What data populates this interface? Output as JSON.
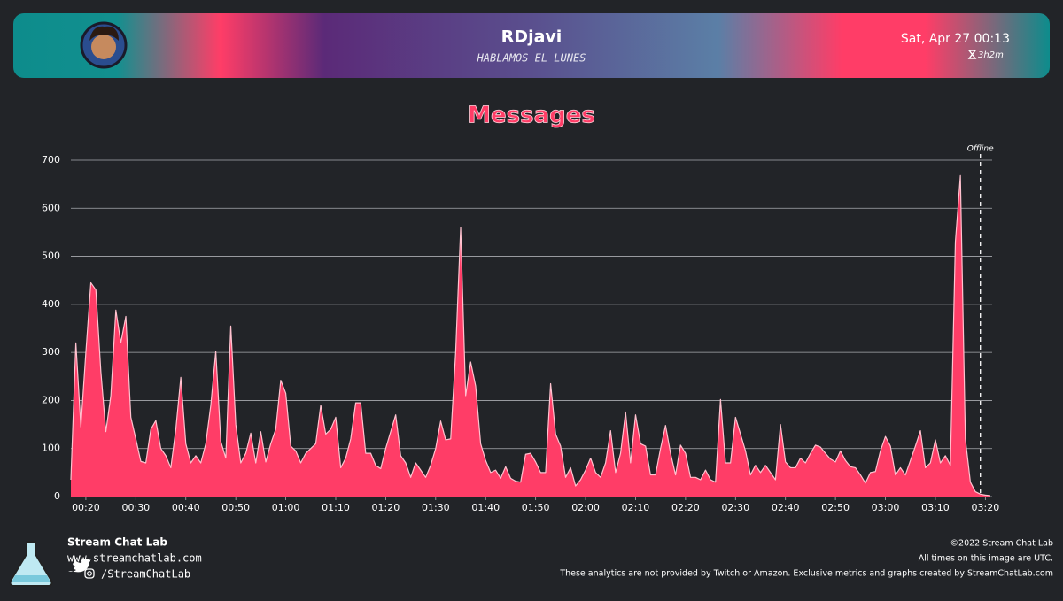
{
  "header": {
    "channel": "RDjavi",
    "stream_title": "HABLAMOS EL LUNES",
    "date": "Sat, Apr 27 00:13",
    "duration": "3h2m"
  },
  "chart_data": {
    "type": "area",
    "title": "Messages",
    "color": "#ff3d67",
    "line_color": "#ffc2cf",
    "x": [
      "00:17",
      "00:18",
      "00:19",
      "00:20",
      "00:21",
      "00:22",
      "00:23",
      "00:24",
      "00:25",
      "00:26",
      "00:27",
      "00:28",
      "00:29",
      "00:30",
      "00:31",
      "00:32",
      "00:33",
      "00:34",
      "00:35",
      "00:36",
      "00:37",
      "00:38",
      "00:39",
      "00:40",
      "00:41",
      "00:42",
      "00:43",
      "00:44",
      "00:45",
      "00:46",
      "00:47",
      "00:48",
      "00:49",
      "00:50",
      "00:51",
      "00:52",
      "00:53",
      "00:54",
      "00:55",
      "00:56",
      "00:57",
      "00:58",
      "00:59",
      "01:00",
      "01:01",
      "01:02",
      "01:03",
      "01:04",
      "01:05",
      "01:06",
      "01:07",
      "01:08",
      "01:09",
      "01:10",
      "01:11",
      "01:12",
      "01:13",
      "01:14",
      "01:15",
      "01:16",
      "01:17",
      "01:18",
      "01:19",
      "01:20",
      "01:21",
      "01:22",
      "01:23",
      "01:24",
      "01:25",
      "01:26",
      "01:27",
      "01:28",
      "01:29",
      "01:30",
      "01:31",
      "01:32",
      "01:33",
      "01:34",
      "01:35",
      "01:36",
      "01:37",
      "01:38",
      "01:39",
      "01:40",
      "01:41",
      "01:42",
      "01:43",
      "01:44",
      "01:45",
      "01:46",
      "01:47",
      "01:48",
      "01:49",
      "01:50",
      "01:51",
      "01:52",
      "01:53",
      "01:54",
      "01:55",
      "01:56",
      "01:57",
      "01:58",
      "01:59",
      "02:00",
      "02:01",
      "02:02",
      "02:03",
      "02:04",
      "02:05",
      "02:06",
      "02:07",
      "02:08",
      "02:09",
      "02:10",
      "02:11",
      "02:12",
      "02:13",
      "02:14",
      "02:15",
      "02:16",
      "02:17",
      "02:18",
      "02:19",
      "02:20",
      "02:21",
      "02:22",
      "02:23",
      "02:24",
      "02:25",
      "02:26",
      "02:27",
      "02:28",
      "02:29",
      "02:30",
      "02:31",
      "02:32",
      "02:33",
      "02:34",
      "02:35",
      "02:36",
      "02:37",
      "02:38",
      "02:39",
      "02:40",
      "02:41",
      "02:42",
      "02:43",
      "02:44",
      "02:45",
      "02:46",
      "02:47",
      "02:48",
      "02:49",
      "02:50",
      "02:51",
      "02:52",
      "02:53",
      "02:54",
      "02:55",
      "02:56",
      "02:57",
      "02:58",
      "02:59",
      "03:00",
      "03:01",
      "03:02",
      "03:03",
      "03:04",
      "03:05",
      "03:06",
      "03:07",
      "03:08",
      "03:09",
      "03:10",
      "03:11",
      "03:12",
      "03:13",
      "03:14",
      "03:15",
      "03:16",
      "03:17",
      "03:18",
      "03:19",
      "03:20",
      "03:21"
    ],
    "values": [
      35,
      320,
      145,
      300,
      445,
      430,
      260,
      135,
      210,
      388,
      320,
      375,
      165,
      120,
      73,
      70,
      140,
      158,
      100,
      85,
      60,
      140,
      248,
      110,
      70,
      85,
      70,
      110,
      190,
      302,
      115,
      80,
      355,
      150,
      70,
      90,
      132,
      70,
      135,
      72,
      110,
      140,
      242,
      215,
      105,
      95,
      70,
      90,
      100,
      110,
      190,
      130,
      140,
      165,
      60,
      80,
      120,
      195,
      195,
      90,
      90,
      65,
      58,
      100,
      135,
      170,
      85,
      70,
      40,
      70,
      55,
      40,
      65,
      100,
      157,
      118,
      120,
      300,
      560,
      210,
      280,
      230,
      110,
      75,
      50,
      55,
      38,
      62,
      38,
      32,
      30,
      88,
      90,
      72,
      50,
      50,
      235,
      130,
      105,
      40,
      60,
      22,
      35,
      55,
      80,
      50,
      40,
      70,
      137,
      50,
      90,
      176,
      70,
      170,
      110,
      105,
      45,
      45,
      100,
      148,
      90,
      45,
      107,
      90,
      40,
      40,
      35,
      55,
      35,
      30,
      202,
      70,
      70,
      165,
      130,
      95,
      45,
      65,
      50,
      65,
      50,
      35,
      150,
      72,
      60,
      60,
      80,
      70,
      90,
      107,
      103,
      90,
      78,
      72,
      95,
      75,
      62,
      60,
      45,
      28,
      50,
      52,
      95,
      125,
      105,
      45,
      60,
      45,
      75,
      105,
      137,
      60,
      70,
      118,
      70,
      85,
      65,
      530,
      668,
      120,
      30,
      10,
      5,
      3,
      2
    ],
    "xlim": [
      "00:17",
      "03:21"
    ],
    "xticks": [
      "00:20",
      "00:30",
      "00:40",
      "00:50",
      "01:00",
      "01:10",
      "01:20",
      "01:30",
      "01:40",
      "01:50",
      "02:00",
      "02:10",
      "02:20",
      "02:30",
      "02:40",
      "02:50",
      "03:00",
      "03:10",
      "03:20"
    ],
    "ylim": [
      0,
      700
    ],
    "yticks": [
      0,
      100,
      200,
      300,
      400,
      500,
      600,
      700
    ],
    "grid": true,
    "annotation": {
      "label": "Offline",
      "x": "03:19"
    }
  },
  "footer": {
    "brand": "Stream Chat Lab",
    "website": "www.streamchatlab.com",
    "social": "/StreamChatLab",
    "copyright": "©2022 Stream Chat Lab",
    "timezone_note": "All times on this image are UTC.",
    "disclaimer": "These analytics are not provided by Twitch or Amazon. Exclusive metrics and graphs created by StreamChatLab.com"
  }
}
